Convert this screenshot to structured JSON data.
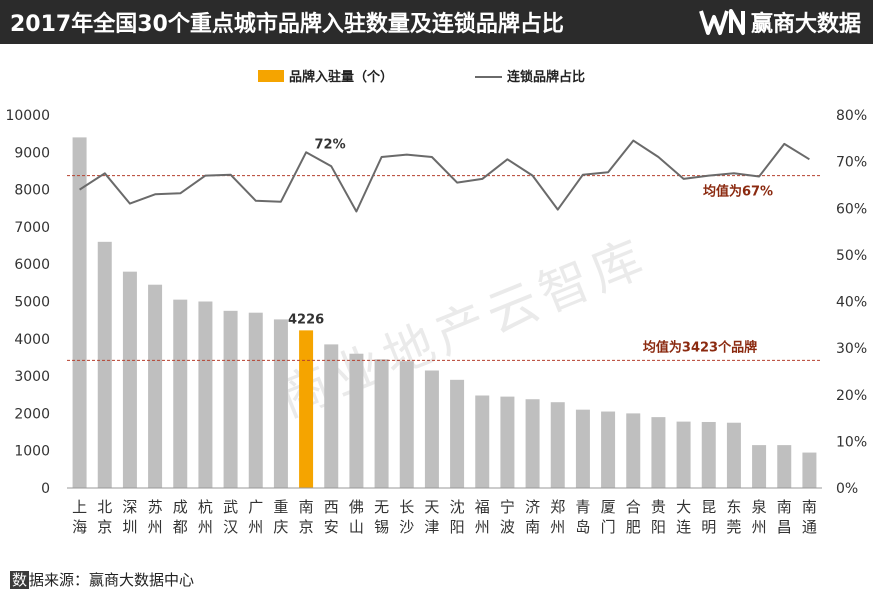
{
  "header": {
    "title": "2017年全国30个重点城市品牌入驻数量及连锁品牌占比",
    "brand_name": "赢商大数据"
  },
  "footer": {
    "label_prefix": "数",
    "label_rest": "据来源：赢商大数据中心"
  },
  "colors": {
    "bar": "#bfbfbf",
    "bar_highlight": "#f5a400",
    "line": "#6a6a6a",
    "ref_line": "#b5412f",
    "ref_text": "#8b2a10"
  },
  "chart_data": {
    "type": "bar",
    "categories": [
      [
        "上",
        "海"
      ],
      [
        "北",
        "京"
      ],
      [
        "深",
        "圳"
      ],
      [
        "苏",
        "州"
      ],
      [
        "成",
        "都"
      ],
      [
        "杭",
        "州"
      ],
      [
        "武",
        "汉"
      ],
      [
        "广",
        "州"
      ],
      [
        "重",
        "庆"
      ],
      [
        "南",
        "京"
      ],
      [
        "西",
        "安"
      ],
      [
        "佛",
        "山"
      ],
      [
        "无",
        "锡"
      ],
      [
        "长",
        "沙"
      ],
      [
        "天",
        "津"
      ],
      [
        "沈",
        "阳"
      ],
      [
        "福",
        "州"
      ],
      [
        "宁",
        "波"
      ],
      [
        "济",
        "南"
      ],
      [
        "郑",
        "州"
      ],
      [
        "青",
        "岛"
      ],
      [
        "厦",
        "门"
      ],
      [
        "合",
        "肥"
      ],
      [
        "贵",
        "阳"
      ],
      [
        "大",
        "连"
      ],
      [
        "昆",
        "明"
      ],
      [
        "东",
        "莞"
      ],
      [
        "泉",
        "州"
      ],
      [
        "南",
        "昌"
      ],
      [
        "南",
        "通"
      ]
    ],
    "series": [
      {
        "name": "品牌入驻量（个）",
        "kind": "bar",
        "axis": "left",
        "values": [
          9400,
          6600,
          5800,
          5450,
          5050,
          5000,
          4750,
          4700,
          4520,
          4226,
          3850,
          3600,
          3450,
          3400,
          3150,
          2900,
          2480,
          2450,
          2380,
          2300,
          2100,
          2050,
          2000,
          1900,
          1780,
          1770,
          1750,
          1150,
          1150,
          950
        ],
        "highlight_index": 9
      },
      {
        "name": "连锁品牌占比",
        "kind": "line",
        "axis": "right",
        "values": [
          64,
          67.5,
          61,
          63,
          63.2,
          67,
          67.2,
          61.6,
          61.4,
          72,
          69,
          59.3,
          71,
          71.5,
          71,
          65.5,
          66.3,
          70.5,
          67,
          59.7,
          67.2,
          67.7,
          74.5,
          71,
          66.3,
          67,
          67.5,
          66.8,
          73.8,
          70.5
        ]
      }
    ],
    "ylim": [
      0,
      10000
    ],
    "yticks": [
      "0",
      "1000",
      "2000",
      "3000",
      "4000",
      "5000",
      "6000",
      "7000",
      "8000",
      "9000",
      "10000"
    ],
    "y2lim": [
      0,
      80
    ],
    "y2ticks": [
      "0%",
      "10%",
      "20%",
      "30%",
      "40%",
      "50%",
      "60%",
      "70%",
      "80%"
    ],
    "avg_bar": 3423,
    "avg_bar_label": "均值为3423个品牌",
    "avg_line": 67,
    "avg_line_label": "均值为67%",
    "annotation_bar": "4226",
    "annotation_line": "72%",
    "legend_position": "top-center",
    "watermark": "商业地产云智库"
  }
}
